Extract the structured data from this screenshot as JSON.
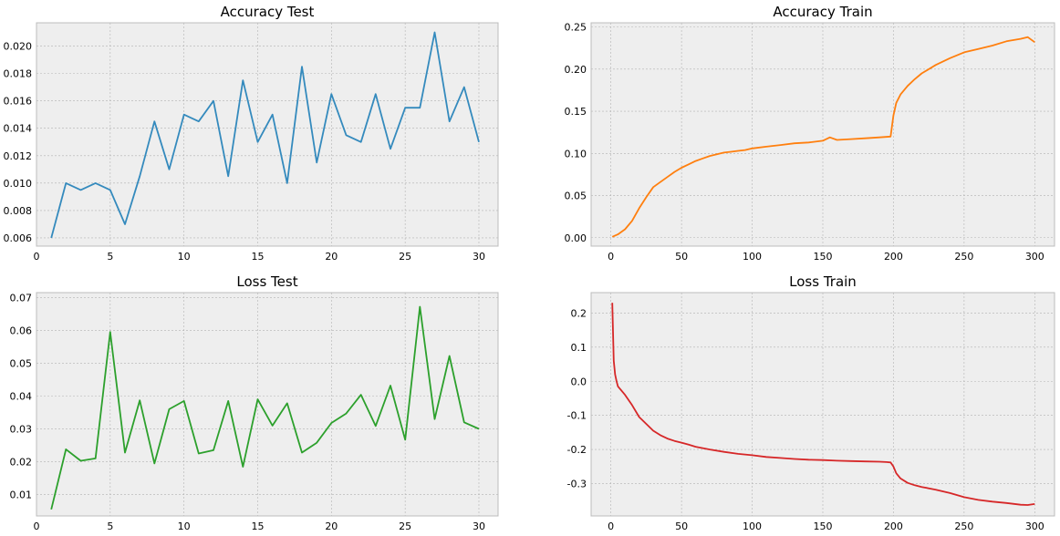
{
  "chart_data": [
    {
      "type": "line",
      "title": "Accuracy Test",
      "color": "#348ABD",
      "xlim": [
        0,
        31.3
      ],
      "ylim": [
        0.0054,
        0.0217
      ],
      "xticks": [
        0,
        5,
        10,
        15,
        20,
        25,
        30
      ],
      "yticks": [
        0.006,
        0.008,
        0.01,
        0.012,
        0.014,
        0.016,
        0.018,
        0.02
      ],
      "ytick_decimals": 3,
      "grid": true,
      "x": [
        1,
        2,
        3,
        4,
        5,
        6,
        7,
        8,
        9,
        10,
        11,
        12,
        13,
        14,
        15,
        16,
        17,
        18,
        19,
        20,
        21,
        22,
        23,
        24,
        25,
        26,
        27,
        28,
        29,
        30
      ],
      "y": [
        0.006,
        0.01,
        0.0095,
        0.01,
        0.0095,
        0.007,
        0.0105,
        0.0145,
        0.011,
        0.015,
        0.0145,
        0.016,
        0.0105,
        0.0175,
        0.013,
        0.015,
        0.01,
        0.0185,
        0.0115,
        0.0165,
        0.0135,
        0.013,
        0.0165,
        0.0125,
        0.0155,
        0.0155,
        0.021,
        0.0145,
        0.017,
        0.013
      ]
    },
    {
      "type": "line",
      "title": "Accuracy Train",
      "color": "#FF7F0E",
      "xlim": [
        -14,
        314
      ],
      "ylim": [
        -0.01,
        0.255
      ],
      "xticks": [
        0,
        50,
        100,
        150,
        200,
        250,
        300
      ],
      "yticks": [
        0.0,
        0.05,
        0.1,
        0.15,
        0.2,
        0.25
      ],
      "ytick_decimals": 2,
      "grid": true,
      "x": [
        1,
        5,
        10,
        15,
        20,
        25,
        30,
        35,
        40,
        45,
        50,
        55,
        60,
        65,
        70,
        75,
        80,
        85,
        90,
        95,
        100,
        110,
        120,
        130,
        140,
        150,
        155,
        160,
        170,
        180,
        190,
        198,
        200,
        202,
        205,
        210,
        215,
        220,
        230,
        240,
        250,
        260,
        270,
        280,
        290,
        295,
        300
      ],
      "y": [
        0.001,
        0.004,
        0.01,
        0.02,
        0.035,
        0.048,
        0.06,
        0.066,
        0.072,
        0.078,
        0.083,
        0.087,
        0.091,
        0.094,
        0.097,
        0.099,
        0.101,
        0.102,
        0.103,
        0.104,
        0.106,
        0.108,
        0.11,
        0.112,
        0.113,
        0.115,
        0.119,
        0.116,
        0.117,
        0.118,
        0.119,
        0.12,
        0.145,
        0.16,
        0.17,
        0.18,
        0.188,
        0.195,
        0.205,
        0.213,
        0.22,
        0.224,
        0.228,
        0.233,
        0.236,
        0.238,
        0.232
      ]
    },
    {
      "type": "line",
      "title": "Loss Test",
      "color": "#2CA02C",
      "xlim": [
        0,
        31.3
      ],
      "ylim": [
        0.0035,
        0.0715
      ],
      "xticks": [
        0,
        5,
        10,
        15,
        20,
        25,
        30
      ],
      "yticks": [
        0.01,
        0.02,
        0.03,
        0.04,
        0.05,
        0.06,
        0.07
      ],
      "ytick_decimals": 2,
      "grid": true,
      "x": [
        1,
        2,
        3,
        4,
        5,
        6,
        7,
        8,
        9,
        10,
        11,
        12,
        13,
        14,
        15,
        16,
        17,
        18,
        19,
        20,
        21,
        22,
        23,
        24,
        25,
        26,
        27,
        28,
        29,
        30
      ],
      "y": [
        0.0055,
        0.0238,
        0.0203,
        0.021,
        0.0595,
        0.0228,
        0.0387,
        0.0195,
        0.036,
        0.0385,
        0.0225,
        0.0235,
        0.0385,
        0.0185,
        0.039,
        0.031,
        0.0378,
        0.0228,
        0.0258,
        0.0318,
        0.0347,
        0.0404,
        0.0309,
        0.0432,
        0.0267,
        0.0672,
        0.033,
        0.0522,
        0.032,
        0.03
      ]
    },
    {
      "type": "line",
      "title": "Loss Train",
      "color": "#D62728",
      "xlim": [
        -14,
        314
      ],
      "ylim": [
        -0.395,
        0.26
      ],
      "xticks": [
        0,
        50,
        100,
        150,
        200,
        250,
        300
      ],
      "yticks": [
        -0.3,
        -0.2,
        -0.1,
        0.0,
        0.1,
        0.2
      ],
      "ytick_decimals": 1,
      "grid": true,
      "x": [
        1,
        2,
        3,
        4,
        5,
        7,
        10,
        15,
        20,
        25,
        30,
        35,
        40,
        45,
        50,
        55,
        60,
        70,
        80,
        90,
        100,
        110,
        120,
        130,
        140,
        150,
        160,
        170,
        180,
        190,
        195,
        198,
        200,
        202,
        205,
        210,
        215,
        220,
        230,
        240,
        250,
        260,
        270,
        280,
        290,
        295,
        300
      ],
      "y": [
        0.23,
        0.06,
        0.02,
        0.0,
        -0.015,
        -0.025,
        -0.04,
        -0.07,
        -0.105,
        -0.125,
        -0.145,
        -0.158,
        -0.168,
        -0.175,
        -0.18,
        -0.186,
        -0.192,
        -0.2,
        -0.207,
        -0.213,
        -0.217,
        -0.222,
        -0.225,
        -0.228,
        -0.23,
        -0.231,
        -0.233,
        -0.234,
        -0.235,
        -0.236,
        -0.237,
        -0.238,
        -0.25,
        -0.27,
        -0.285,
        -0.298,
        -0.305,
        -0.31,
        -0.318,
        -0.328,
        -0.34,
        -0.348,
        -0.353,
        -0.357,
        -0.362,
        -0.363,
        -0.36
      ]
    }
  ]
}
